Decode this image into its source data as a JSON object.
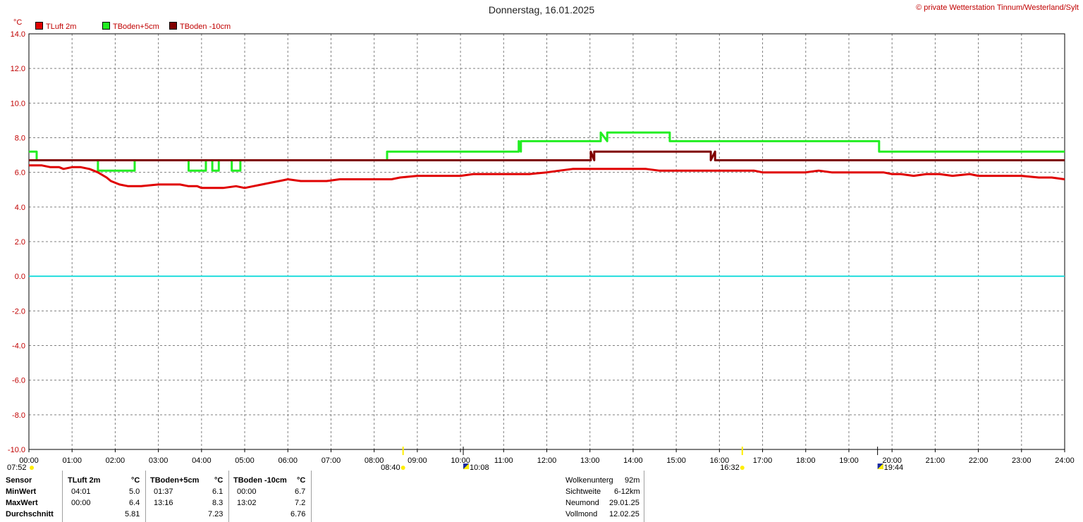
{
  "title": "Donnerstag, 16.01.2025",
  "copyright": "© private Wetterstation Tinnum/Westerland/Sylt",
  "unit": "°C",
  "colors": {
    "tluft": "#e00000",
    "tboden5": "#22ee22",
    "tboden10": "#800000",
    "zero": "#22dddd",
    "sun": "#ffee00",
    "grid": "#808080"
  },
  "legend": [
    "TLuft 2m",
    "TBoden+5cm",
    "TBoden -10cm"
  ],
  "chart_data": {
    "type": "line",
    "x_unit": "hours",
    "x_ticks": [
      "00:00",
      "01:00",
      "02:00",
      "03:00",
      "04:00",
      "05:00",
      "06:00",
      "07:00",
      "08:00",
      "09:00",
      "10:00",
      "11:00",
      "12:00",
      "13:00",
      "14:00",
      "15:00",
      "16:00",
      "17:00",
      "18:00",
      "19:00",
      "20:00",
      "21:00",
      "22:00",
      "23:00",
      "24:00"
    ],
    "y_ticks": [
      "14.0",
      "12.0",
      "10.0",
      "8.0",
      "6.0",
      "4.0",
      "2.0",
      "0.0",
      "-2.0",
      "-4.0",
      "-6.0",
      "-8.0",
      "-10.0"
    ],
    "ylim": [
      -10,
      14
    ],
    "xlim": [
      0,
      24
    ],
    "grid": true,
    "legend_position": "top-left",
    "series": [
      {
        "name": "TLuft 2m",
        "x": [
          0.0,
          0.3,
          0.5,
          0.7,
          0.8,
          1.0,
          1.2,
          1.4,
          1.6,
          1.8,
          1.9,
          2.1,
          2.3,
          2.6,
          3.0,
          3.5,
          3.7,
          3.9,
          4.0,
          4.3,
          4.5,
          4.8,
          5.0,
          5.2,
          5.4,
          5.6,
          5.8,
          6.0,
          6.3,
          6.6,
          6.9,
          7.2,
          7.6,
          8.0,
          8.4,
          8.6,
          9.0,
          9.5,
          10.0,
          10.3,
          10.5,
          10.8,
          11.2,
          11.6,
          12.0,
          12.3,
          12.6,
          12.9,
          13.2,
          13.5,
          13.8,
          14.0,
          14.3,
          14.6,
          14.9,
          15.2,
          15.5,
          15.8,
          16.1,
          16.5,
          16.8,
          17.0,
          17.5,
          17.8,
          18.0,
          18.3,
          18.6,
          18.9,
          19.2,
          19.5,
          19.8,
          20.0,
          20.2,
          20.5,
          20.8,
          21.1,
          21.4,
          21.8,
          22.0,
          22.4,
          22.8,
          23.0,
          23.4,
          23.7,
          24.0
        ],
        "values": [
          6.4,
          6.4,
          6.3,
          6.3,
          6.2,
          6.3,
          6.3,
          6.2,
          6.0,
          5.7,
          5.5,
          5.3,
          5.2,
          5.2,
          5.3,
          5.3,
          5.2,
          5.2,
          5.1,
          5.1,
          5.1,
          5.2,
          5.1,
          5.2,
          5.3,
          5.4,
          5.5,
          5.6,
          5.5,
          5.5,
          5.5,
          5.6,
          5.6,
          5.6,
          5.6,
          5.7,
          5.8,
          5.8,
          5.8,
          5.9,
          5.9,
          5.9,
          5.9,
          5.9,
          6.0,
          6.1,
          6.2,
          6.2,
          6.2,
          6.2,
          6.2,
          6.2,
          6.2,
          6.1,
          6.1,
          6.1,
          6.1,
          6.1,
          6.1,
          6.1,
          6.1,
          6.0,
          6.0,
          6.0,
          6.0,
          6.1,
          6.0,
          6.0,
          6.0,
          6.0,
          6.0,
          5.9,
          5.9,
          5.8,
          5.9,
          5.9,
          5.8,
          5.9,
          5.8,
          5.8,
          5.8,
          5.8,
          5.7,
          5.7,
          5.6
        ]
      },
      {
        "name": "TBoden+5cm",
        "x": [
          0.0,
          0.18,
          0.18,
          1.6,
          1.6,
          2.45,
          2.45,
          3.7,
          3.7,
          4.1,
          4.1,
          4.25,
          4.25,
          4.4,
          4.4,
          4.7,
          4.7,
          4.9,
          4.9,
          8.3,
          8.3,
          11.35,
          11.35,
          11.4,
          11.4,
          13.0,
          13.0,
          13.25,
          13.25,
          13.4,
          13.4,
          14.85,
          14.85,
          19.7,
          19.7,
          24.0
        ],
        "values": [
          7.2,
          7.2,
          6.7,
          6.7,
          6.1,
          6.1,
          6.7,
          6.7,
          6.1,
          6.1,
          6.7,
          6.7,
          6.1,
          6.1,
          6.7,
          6.7,
          6.1,
          6.1,
          6.7,
          6.7,
          7.2,
          7.2,
          7.8,
          7.2,
          7.8,
          7.8,
          7.8,
          7.8,
          8.3,
          7.8,
          8.3,
          8.3,
          7.8,
          7.8,
          7.2,
          7.2
        ]
      },
      {
        "name": "TBoden -10cm",
        "x": [
          0.0,
          13.02,
          13.02,
          13.1,
          13.1,
          13.16,
          13.16,
          15.8,
          15.8,
          15.9,
          15.9,
          24.0
        ],
        "values": [
          6.7,
          6.7,
          7.2,
          6.7,
          7.2,
          7.2,
          7.2,
          7.2,
          6.7,
          7.2,
          6.7,
          6.7
        ]
      }
    ]
  },
  "sun_moon": [
    {
      "label": "07:52",
      "kind": "sun",
      "x": 0.0
    },
    {
      "label": "08:40",
      "kind": "sun-marked",
      "x": 8.67
    },
    {
      "label": "10:08",
      "kind": "moon",
      "x": 10.13
    },
    {
      "label": "16:32",
      "kind": "sun-marked",
      "x": 16.53
    },
    {
      "label": "19:44",
      "kind": "moon",
      "x": 19.73
    }
  ],
  "stats": {
    "row_labels": [
      "Sensor",
      "MinWert",
      "MaxWert",
      "Durchschnitt"
    ],
    "columns": [
      {
        "header": "TLuft 2m",
        "unit": "°C",
        "min_time": "04:01",
        "min": "5.0",
        "max_time": "00:00",
        "max": "6.4",
        "avg": "5.81"
      },
      {
        "header": "TBoden+5cm",
        "unit": "°C",
        "min_time": "01:37",
        "min": "6.1",
        "max_time": "13:16",
        "max": "8.3",
        "avg": "7.23"
      },
      {
        "header": "TBoden -10cm",
        "unit": "°C",
        "min_time": "00:00",
        "min": "6.7",
        "max_time": "13:02",
        "max": "7.2",
        "avg": "6.76"
      }
    ]
  },
  "extra": [
    {
      "label": "Wolkenunterg",
      "value": "92m"
    },
    {
      "label": "Sichtweite",
      "value": "6-12km"
    },
    {
      "label": "Neumond",
      "value": "29.01.25"
    },
    {
      "label": "Vollmond",
      "value": "12.02.25"
    }
  ]
}
